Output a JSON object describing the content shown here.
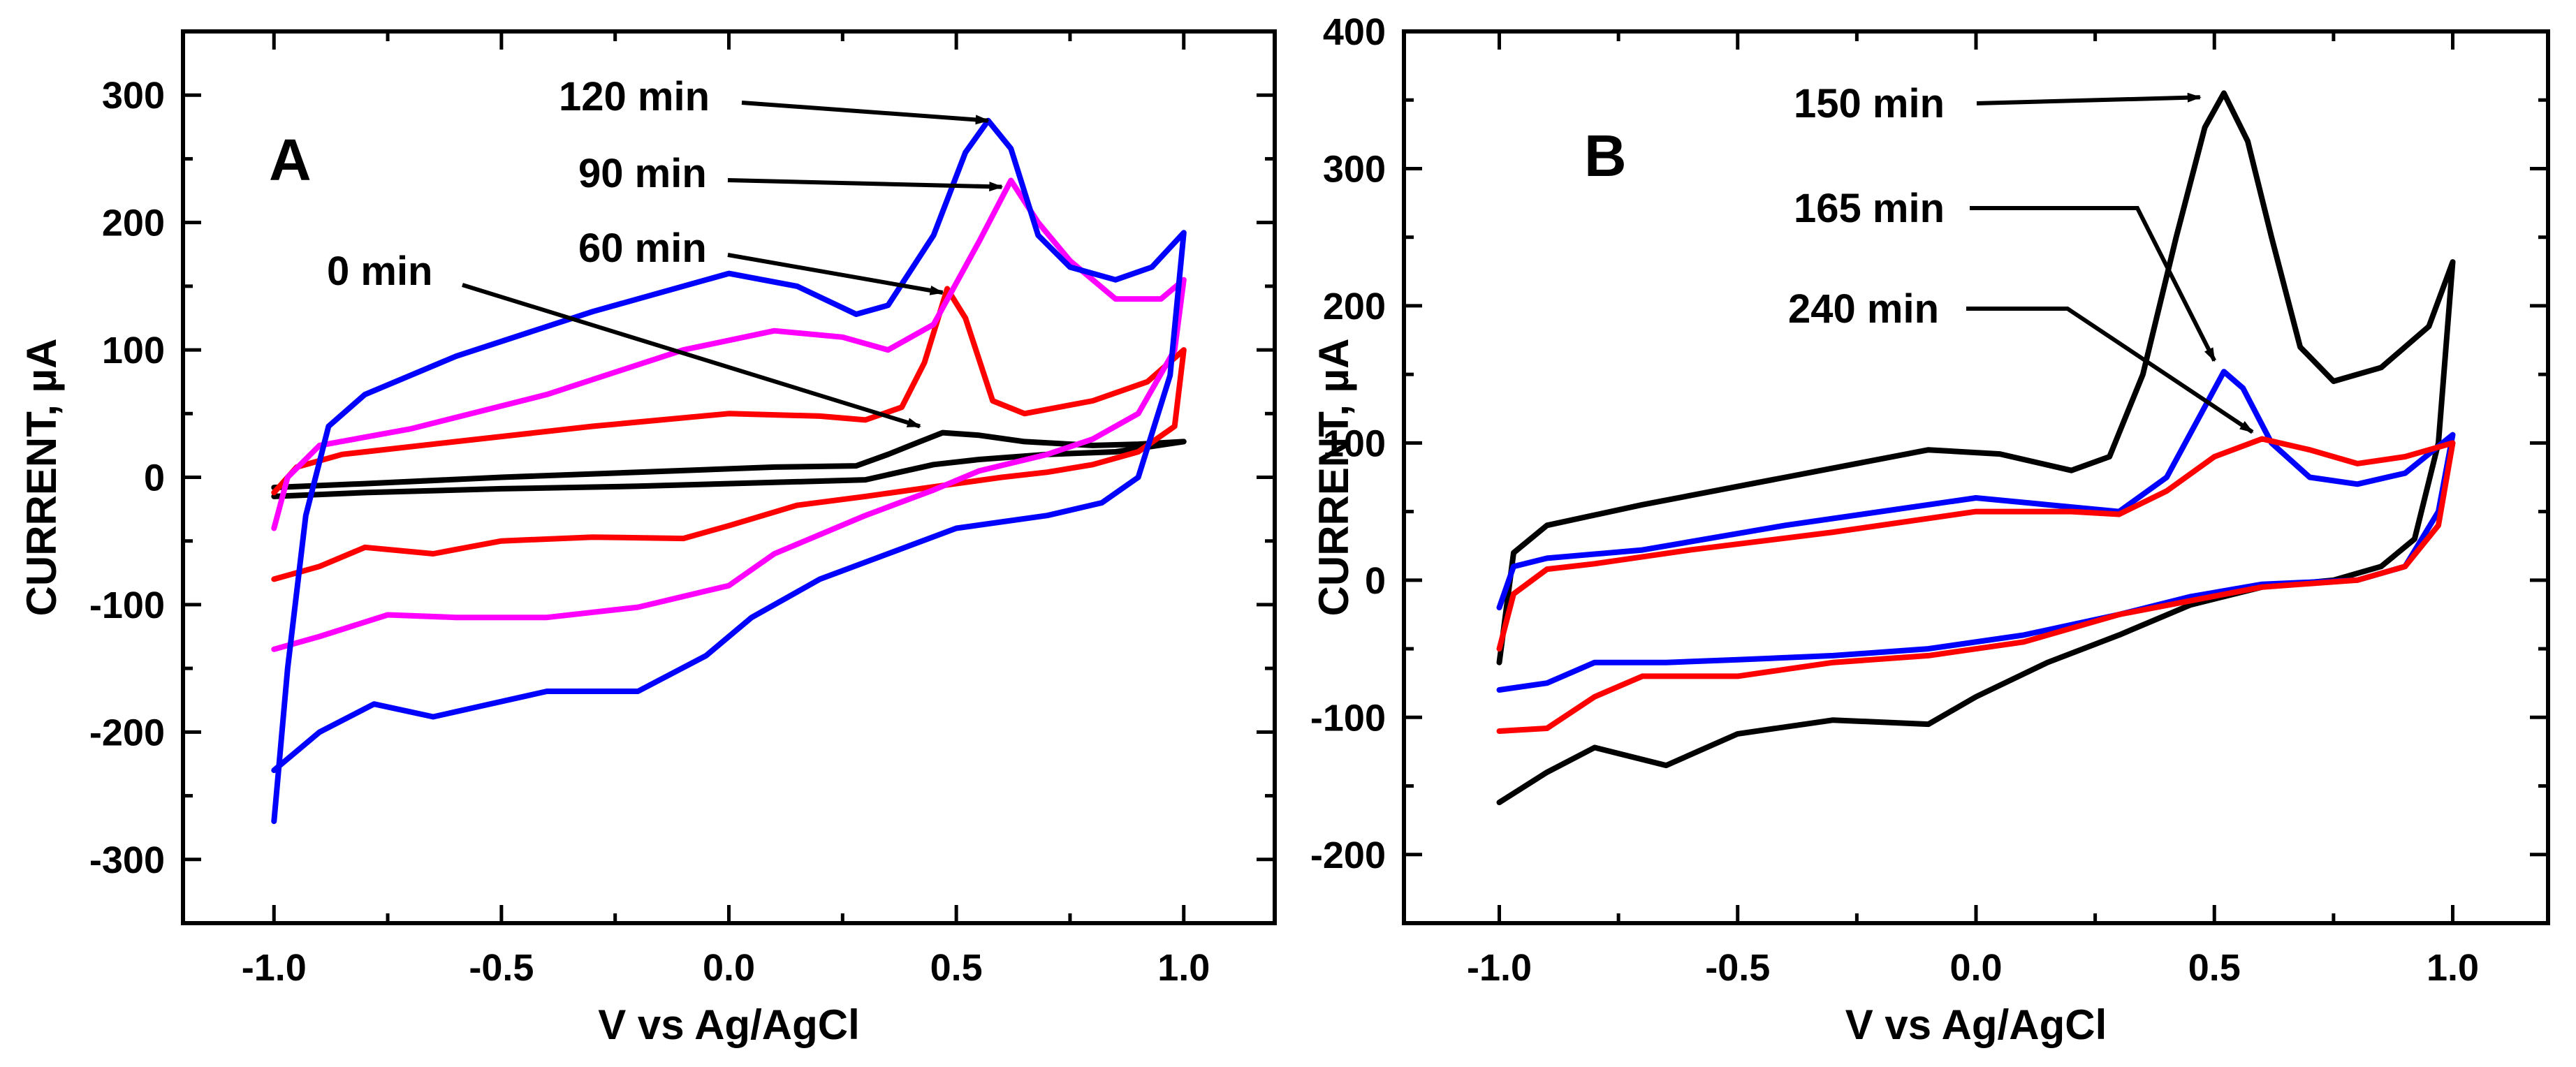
{
  "chart_data": [
    {
      "type": "line",
      "panel_label": "A",
      "xlabel": "V vs Ag/AgCl",
      "ylabel": "CURRENT, µA",
      "xlim": [
        -1.2,
        1.2
      ],
      "ylim": [
        -350,
        350
      ],
      "x_ticks": [
        -1.0,
        -0.5,
        0.0,
        0.5,
        1.0
      ],
      "x_tick_labels": [
        "-1.0",
        "-0.5",
        "0.0",
        "0.5",
        "1.0"
      ],
      "y_ticks": [
        -300,
        -200,
        -100,
        0,
        100,
        200,
        300
      ],
      "y_tick_labels": [
        "-300",
        "-200",
        "-100",
        "0",
        "100",
        "200",
        "300"
      ],
      "series": [
        {
          "name": "0 min",
          "color": "#000000",
          "forward": [
            [
              -1.0,
              -8
            ],
            [
              -0.8,
              -5
            ],
            [
              -0.5,
              0
            ],
            [
              -0.2,
              4
            ],
            [
              0.1,
              8
            ],
            [
              0.28,
              9
            ],
            [
              0.35,
              18
            ],
            [
              0.42,
              28
            ],
            [
              0.47,
              35
            ],
            [
              0.55,
              33
            ],
            [
              0.65,
              28
            ],
            [
              0.8,
              25
            ],
            [
              0.9,
              26
            ],
            [
              1.0,
              28
            ]
          ],
          "reverse": [
            [
              1.0,
              28
            ],
            [
              0.85,
              20
            ],
            [
              0.7,
              18
            ],
            [
              0.55,
              14
            ],
            [
              0.45,
              10
            ],
            [
              0.3,
              -2
            ],
            [
              0.1,
              -4
            ],
            [
              -0.2,
              -7
            ],
            [
              -0.5,
              -9
            ],
            [
              -0.8,
              -12
            ],
            [
              -1.0,
              -15
            ]
          ]
        },
        {
          "name": "60 min",
          "color": "#ff0000",
          "forward": [
            [
              -1.0,
              -12
            ],
            [
              -0.95,
              8
            ],
            [
              -0.85,
              18
            ],
            [
              -0.6,
              28
            ],
            [
              -0.3,
              40
            ],
            [
              0.0,
              50
            ],
            [
              0.2,
              48
            ],
            [
              0.3,
              45
            ],
            [
              0.38,
              55
            ],
            [
              0.43,
              90
            ],
            [
              0.48,
              148
            ],
            [
              0.52,
              125
            ],
            [
              0.58,
              60
            ],
            [
              0.65,
              50
            ],
            [
              0.8,
              60
            ],
            [
              0.92,
              75
            ],
            [
              1.0,
              100
            ]
          ],
          "reverse": [
            [
              1.0,
              100
            ],
            [
              0.98,
              40
            ],
            [
              0.9,
              20
            ],
            [
              0.8,
              10
            ],
            [
              0.7,
              4
            ],
            [
              0.6,
              0
            ],
            [
              0.5,
              -5
            ],
            [
              0.3,
              -15
            ],
            [
              0.15,
              -22
            ],
            [
              0.0,
              -38
            ],
            [
              -0.1,
              -48
            ],
            [
              -0.3,
              -47
            ],
            [
              -0.5,
              -50
            ],
            [
              -0.65,
              -60
            ],
            [
              -0.8,
              -55
            ],
            [
              -0.9,
              -70
            ],
            [
              -1.0,
              -80
            ]
          ]
        },
        {
          "name": "90 min",
          "color": "#ff00ff",
          "forward": [
            [
              -1.0,
              -40
            ],
            [
              -0.97,
              0
            ],
            [
              -0.9,
              25
            ],
            [
              -0.7,
              38
            ],
            [
              -0.4,
              65
            ],
            [
              -0.1,
              100
            ],
            [
              0.1,
              115
            ],
            [
              0.25,
              110
            ],
            [
              0.35,
              100
            ],
            [
              0.45,
              120
            ],
            [
              0.55,
              185
            ],
            [
              0.62,
              233
            ],
            [
              0.68,
              200
            ],
            [
              0.75,
              170
            ],
            [
              0.85,
              140
            ],
            [
              0.95,
              140
            ],
            [
              1.0,
              155
            ]
          ],
          "reverse": [
            [
              1.0,
              155
            ],
            [
              0.98,
              100
            ],
            [
              0.9,
              50
            ],
            [
              0.8,
              30
            ],
            [
              0.7,
              18
            ],
            [
              0.55,
              5
            ],
            [
              0.45,
              -10
            ],
            [
              0.3,
              -30
            ],
            [
              0.1,
              -60
            ],
            [
              0.0,
              -85
            ],
            [
              -0.2,
              -102
            ],
            [
              -0.4,
              -110
            ],
            [
              -0.6,
              -110
            ],
            [
              -0.75,
              -108
            ],
            [
              -0.9,
              -125
            ],
            [
              -1.0,
              -135
            ]
          ]
        },
        {
          "name": "120 min",
          "color": "#0000ff",
          "forward": [
            [
              -1.0,
              -270
            ],
            [
              -0.97,
              -150
            ],
            [
              -0.93,
              -30
            ],
            [
              -0.88,
              40
            ],
            [
              -0.8,
              65
            ],
            [
              -0.6,
              95
            ],
            [
              -0.3,
              130
            ],
            [
              0.0,
              160
            ],
            [
              0.15,
              150
            ],
            [
              0.28,
              128
            ],
            [
              0.35,
              135
            ],
            [
              0.45,
              190
            ],
            [
              0.52,
              255
            ],
            [
              0.57,
              280
            ],
            [
              0.62,
              258
            ],
            [
              0.68,
              190
            ],
            [
              0.75,
              165
            ],
            [
              0.85,
              155
            ],
            [
              0.93,
              165
            ],
            [
              1.0,
              192
            ]
          ],
          "reverse": [
            [
              1.0,
              192
            ],
            [
              0.97,
              80
            ],
            [
              0.9,
              0
            ],
            [
              0.82,
              -20
            ],
            [
              0.7,
              -30
            ],
            [
              0.5,
              -40
            ],
            [
              0.35,
              -60
            ],
            [
              0.2,
              -80
            ],
            [
              0.05,
              -110
            ],
            [
              -0.05,
              -140
            ],
            [
              -0.2,
              -168
            ],
            [
              -0.4,
              -168
            ],
            [
              -0.55,
              -180
            ],
            [
              -0.65,
              -188
            ],
            [
              -0.78,
              -178
            ],
            [
              -0.9,
              -200
            ],
            [
              -1.0,
              -230
            ]
          ]
        }
      ],
      "annotations": [
        {
          "text": "120 min",
          "target": [
            0.57,
            280
          ]
        },
        {
          "text": "90 min",
          "target": [
            0.6,
            228
          ]
        },
        {
          "text": "60 min",
          "target": [
            0.47,
            145
          ]
        },
        {
          "text": "0 min",
          "target": [
            0.42,
            40
          ]
        }
      ]
    },
    {
      "type": "line",
      "panel_label": "B",
      "xlabel": "V vs Ag/AgCl",
      "ylabel": "CURRENT, µA",
      "xlim": [
        -1.2,
        1.2
      ],
      "ylim": [
        -250,
        400
      ],
      "x_ticks": [
        -1.0,
        -0.5,
        0.0,
        0.5,
        1.0
      ],
      "x_tick_labels": [
        "-1.0",
        "-0.5",
        "0.0",
        "0.5",
        "1.0"
      ],
      "y_ticks": [
        -200,
        -100,
        0,
        100,
        200,
        300,
        400
      ],
      "y_tick_labels": [
        "-200",
        "-100",
        "0",
        "100",
        "200",
        "300",
        "400"
      ],
      "series": [
        {
          "name": "150 min",
          "color": "#000000",
          "forward": [
            [
              -1.0,
              -60
            ],
            [
              -0.97,
              20
            ],
            [
              -0.9,
              40
            ],
            [
              -0.7,
              55
            ],
            [
              -0.4,
              75
            ],
            [
              -0.1,
              95
            ],
            [
              0.05,
              92
            ],
            [
              0.2,
              80
            ],
            [
              0.28,
              90
            ],
            [
              0.35,
              150
            ],
            [
              0.42,
              250
            ],
            [
              0.48,
              330
            ],
            [
              0.52,
              355
            ],
            [
              0.57,
              320
            ],
            [
              0.62,
              250
            ],
            [
              0.68,
              170
            ],
            [
              0.75,
              145
            ],
            [
              0.85,
              155
            ],
            [
              0.95,
              185
            ],
            [
              1.0,
              232
            ]
          ],
          "reverse": [
            [
              1.0,
              232
            ],
            [
              0.97,
              100
            ],
            [
              0.92,
              30
            ],
            [
              0.85,
              10
            ],
            [
              0.75,
              0
            ],
            [
              0.6,
              -5
            ],
            [
              0.45,
              -18
            ],
            [
              0.3,
              -40
            ],
            [
              0.15,
              -60
            ],
            [
              0.0,
              -85
            ],
            [
              -0.1,
              -105
            ],
            [
              -0.3,
              -102
            ],
            [
              -0.5,
              -112
            ],
            [
              -0.65,
              -135
            ],
            [
              -0.8,
              -122
            ],
            [
              -0.9,
              -140
            ],
            [
              -1.0,
              -162
            ]
          ]
        },
        {
          "name": "165 min",
          "color": "#0000ff",
          "forward": [
            [
              -1.0,
              -20
            ],
            [
              -0.97,
              10
            ],
            [
              -0.9,
              16
            ],
            [
              -0.7,
              22
            ],
            [
              -0.4,
              40
            ],
            [
              -0.1,
              55
            ],
            [
              0.0,
              60
            ],
            [
              0.15,
              55
            ],
            [
              0.3,
              50
            ],
            [
              0.4,
              75
            ],
            [
              0.47,
              120
            ],
            [
              0.52,
              152
            ],
            [
              0.56,
              140
            ],
            [
              0.62,
              100
            ],
            [
              0.7,
              75
            ],
            [
              0.8,
              70
            ],
            [
              0.9,
              78
            ],
            [
              1.0,
              106
            ]
          ],
          "reverse": [
            [
              1.0,
              106
            ],
            [
              0.97,
              50
            ],
            [
              0.9,
              10
            ],
            [
              0.8,
              0
            ],
            [
              0.6,
              -3
            ],
            [
              0.45,
              -12
            ],
            [
              0.3,
              -25
            ],
            [
              0.1,
              -40
            ],
            [
              -0.1,
              -50
            ],
            [
              -0.3,
              -55
            ],
            [
              -0.5,
              -58
            ],
            [
              -0.65,
              -60
            ],
            [
              -0.8,
              -60
            ],
            [
              -0.9,
              -75
            ],
            [
              -1.0,
              -80
            ]
          ]
        },
        {
          "name": "240 min",
          "color": "#ff0000",
          "forward": [
            [
              -1.0,
              -50
            ],
            [
              -0.97,
              -10
            ],
            [
              -0.9,
              8
            ],
            [
              -0.8,
              12
            ],
            [
              -0.6,
              22
            ],
            [
              -0.3,
              35
            ],
            [
              0.0,
              50
            ],
            [
              0.2,
              50
            ],
            [
              0.3,
              48
            ],
            [
              0.4,
              65
            ],
            [
              0.5,
              90
            ],
            [
              0.6,
              103
            ],
            [
              0.7,
              95
            ],
            [
              0.8,
              85
            ],
            [
              0.9,
              90
            ],
            [
              0.95,
              95
            ],
            [
              1.0,
              100
            ]
          ],
          "reverse": [
            [
              1.0,
              100
            ],
            [
              0.97,
              40
            ],
            [
              0.9,
              10
            ],
            [
              0.8,
              0
            ],
            [
              0.6,
              -5
            ],
            [
              0.45,
              -15
            ],
            [
              0.3,
              -25
            ],
            [
              0.1,
              -45
            ],
            [
              -0.1,
              -55
            ],
            [
              -0.3,
              -60
            ],
            [
              -0.5,
              -70
            ],
            [
              -0.7,
              -70
            ],
            [
              -0.8,
              -85
            ],
            [
              -0.9,
              -108
            ],
            [
              -1.0,
              -110
            ]
          ]
        }
      ],
      "annotations": [
        {
          "text": "150 min",
          "target": [
            0.47,
            352
          ]
        },
        {
          "text": "165 min",
          "target": [
            0.5,
            160
          ]
        },
        {
          "text": "240 min",
          "target": [
            0.58,
            108
          ]
        }
      ]
    }
  ]
}
